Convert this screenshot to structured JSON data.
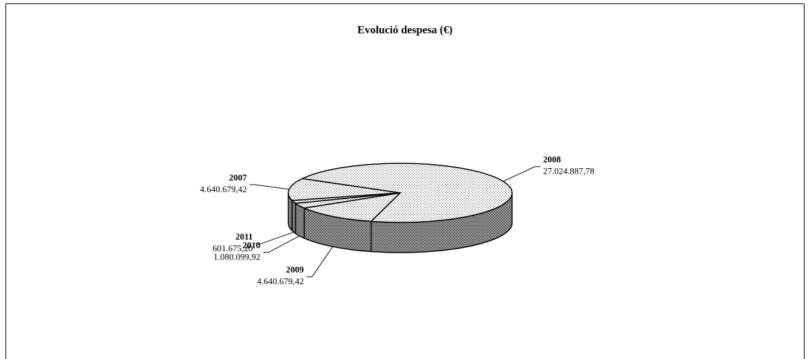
{
  "chart_data": {
    "type": "pie3d",
    "title": "Evolució despesa (€)",
    "categories": [
      "2007",
      "2008",
      "2009",
      "2010",
      "2011"
    ],
    "values": [
      4640679.42,
      27024887.78,
      4640679.42,
      1080099.92,
      601675.2
    ],
    "value_labels": [
      "4.640.679,42",
      "27.024.887,78",
      "4.640.679,42",
      "1.080.099,92",
      "601.675,20"
    ]
  }
}
